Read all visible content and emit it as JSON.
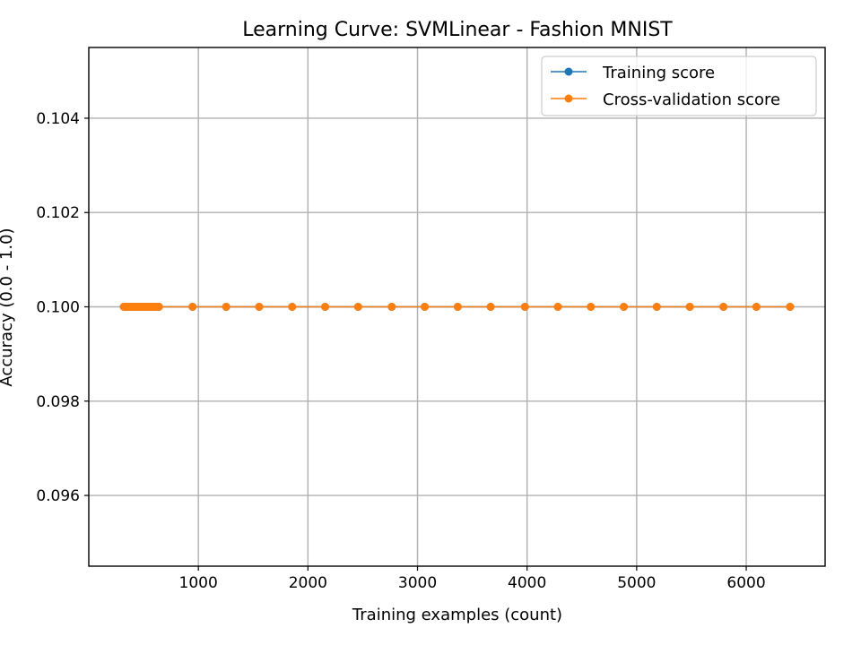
{
  "chart_data": {
    "type": "line",
    "title": "Learning Curve: SVMLinear - Fashion MNIST",
    "xlabel": "Training examples (count)",
    "ylabel": "Accuracy (0.0 - 1.0)",
    "xlim": [
      0,
      6720
    ],
    "ylim": [
      0.0945,
      0.1055
    ],
    "x_ticks": [
      1000,
      2000,
      3000,
      4000,
      5000,
      6000
    ],
    "y_ticks": [
      0.096,
      0.098,
      0.1,
      0.102,
      0.104
    ],
    "x_tick_labels": [
      "1000",
      "2000",
      "3000",
      "4000",
      "5000",
      "6000"
    ],
    "y_tick_labels": [
      "0.096",
      "0.098",
      "0.100",
      "0.102",
      "0.104"
    ],
    "grid": true,
    "legend_position": "top-right",
    "x": [
      320,
      336,
      352,
      368,
      384,
      400,
      416,
      432,
      448,
      464,
      480,
      496,
      512,
      528,
      544,
      560,
      576,
      592,
      608,
      624,
      640,
      947,
      1254,
      1555,
      1856,
      2157,
      2458,
      2765,
      3066,
      3367,
      3668,
      3980,
      4281,
      4582,
      4883,
      5184,
      5485,
      5792,
      6093,
      6400
    ],
    "series": [
      {
        "name": "Training score",
        "color": "#1f77b4",
        "values": [
          0.1,
          0.1,
          0.1,
          0.1,
          0.1,
          0.1,
          0.1,
          0.1,
          0.1,
          0.1,
          0.1,
          0.1,
          0.1,
          0.1,
          0.1,
          0.1,
          0.1,
          0.1,
          0.1,
          0.1,
          0.1,
          0.1,
          0.1,
          0.1,
          0.1,
          0.1,
          0.1,
          0.1,
          0.1,
          0.1,
          0.1,
          0.1,
          0.1,
          0.1,
          0.1,
          0.1,
          0.1,
          0.1,
          0.1,
          0.1
        ]
      },
      {
        "name": "Cross-validation score",
        "color": "#ff7f0e",
        "values": [
          0.1,
          0.1,
          0.1,
          0.1,
          0.1,
          0.1,
          0.1,
          0.1,
          0.1,
          0.1,
          0.1,
          0.1,
          0.1,
          0.1,
          0.1,
          0.1,
          0.1,
          0.1,
          0.1,
          0.1,
          0.1,
          0.1,
          0.1,
          0.1,
          0.1,
          0.1,
          0.1,
          0.1,
          0.1,
          0.1,
          0.1,
          0.1,
          0.1,
          0.1,
          0.1,
          0.1,
          0.1,
          0.1,
          0.1,
          0.1
        ]
      }
    ]
  }
}
